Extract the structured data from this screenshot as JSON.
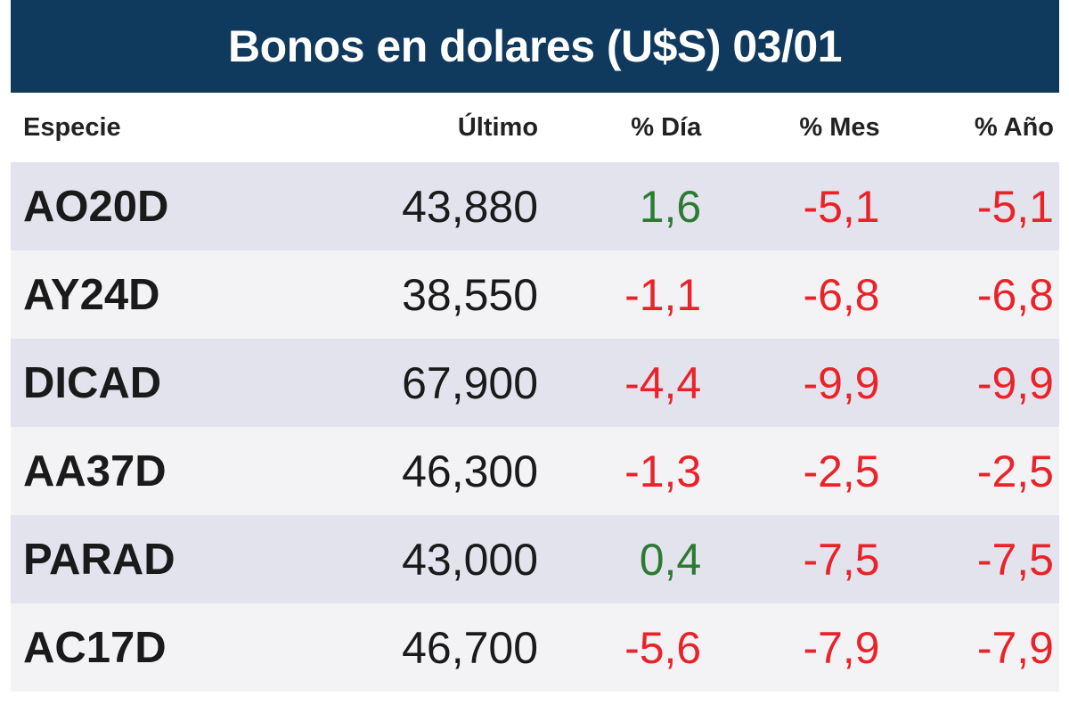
{
  "title": "Bonos en dolares (U$S) 03/01",
  "headers": {
    "especie": "Especie",
    "ultimo": "Último",
    "dia": "% Día",
    "mes": "% Mes",
    "anio": "% Año"
  },
  "rows": [
    {
      "especie": "AO20D",
      "ultimo": "43,880",
      "dia": "1,6",
      "mes": "-5,1",
      "anio": "-5,1"
    },
    {
      "especie": "AY24D",
      "ultimo": "38,550",
      "dia": "-1,1",
      "mes": "-6,8",
      "anio": "-6,8"
    },
    {
      "especie": "DICAD",
      "ultimo": "67,900",
      "dia": "-4,4",
      "mes": "-9,9",
      "anio": "-9,9"
    },
    {
      "especie": "AA37D",
      "ultimo": "46,300",
      "dia": "-1,3",
      "mes": "-2,5",
      "anio": "-2,5"
    },
    {
      "especie": "PARAD",
      "ultimo": "43,000",
      "dia": "0,4",
      "mes": "-7,5",
      "anio": "-7,5"
    },
    {
      "especie": "AC17D",
      "ultimo": "46,700",
      "dia": "-5,6",
      "mes": "-7,9",
      "anio": "-7,9"
    }
  ],
  "colors": {
    "header_bg": "#0f3a5e",
    "row_odd": "#e3e3ed",
    "row_even": "#f3f3f6",
    "positive": "#2d7a33",
    "negative": "#e8242a"
  }
}
